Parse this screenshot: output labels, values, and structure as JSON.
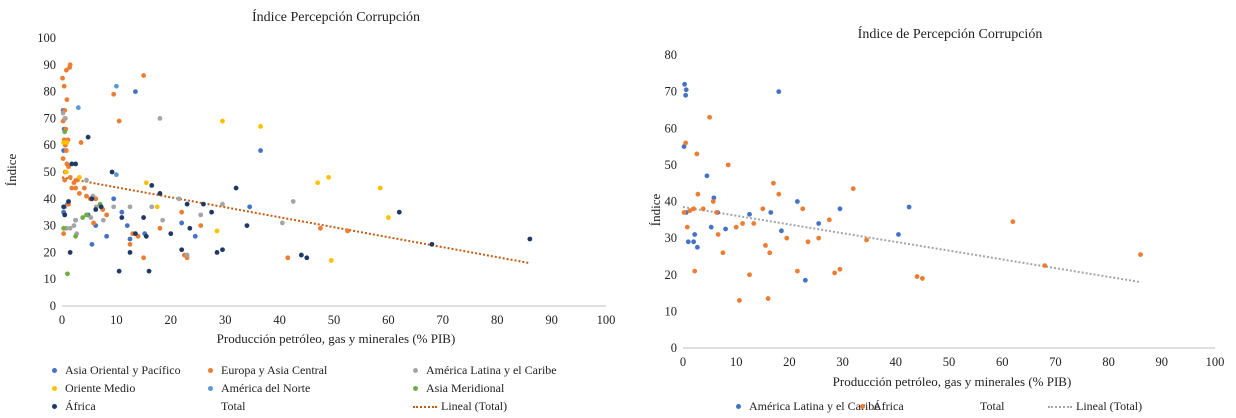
{
  "chart_data": [
    {
      "type": "scatter",
      "title": "Índice Percepción Corrupción",
      "xlabel": "Producción petróleo, gas y minerales (% PIB)",
      "ylabel": "Índice",
      "xlim": [
        0,
        100
      ],
      "ylim": [
        0,
        100
      ],
      "xticks": [
        "0",
        "10",
        "20",
        "30",
        "40",
        "50",
        "60",
        "70",
        "80",
        "90",
        "100"
      ],
      "yticks": [
        "0",
        "10",
        "20",
        "30",
        "40",
        "50",
        "60",
        "70",
        "80",
        "90",
        "100"
      ],
      "grid": false,
      "legend_position": "bottom",
      "series": [
        {
          "name": "Asia Oriental y Pacífico",
          "color": "#4472c4",
          "points": [
            [
              0.2,
              73
            ],
            [
              0.4,
              66
            ],
            [
              0.3,
              58
            ],
            [
              0.3,
              35
            ],
            [
              1.0,
              38
            ],
            [
              2.5,
              32
            ],
            [
              4.8,
              34
            ],
            [
              5.5,
              23
            ],
            [
              6.2,
              30
            ],
            [
              8.2,
              26
            ],
            [
              9.5,
              40
            ],
            [
              11,
              35
            ],
            [
              12,
              30
            ],
            [
              13.5,
              80
            ],
            [
              15.2,
              27
            ],
            [
              22,
              31
            ],
            [
              24.5,
              26
            ],
            [
              34.5,
              37
            ],
            [
              36.5,
              58
            ],
            [
              12.5,
              25
            ]
          ]
        },
        {
          "name": "Europa y Asia Central",
          "color": "#ed7d31",
          "points": [
            [
              0.1,
              85
            ],
            [
              0.4,
              82
            ],
            [
              0.8,
              88
            ],
            [
              0.9,
              77
            ],
            [
              1.4,
              89
            ],
            [
              1.5,
              90
            ],
            [
              0.5,
              73
            ],
            [
              0.6,
              70
            ],
            [
              0.2,
              69
            ],
            [
              0.7,
              66
            ],
            [
              1.1,
              62
            ],
            [
              0.4,
              62
            ],
            [
              0.6,
              60
            ],
            [
              0.8,
              58
            ],
            [
              0.2,
              55
            ],
            [
              0.9,
              53
            ],
            [
              1.2,
              52
            ],
            [
              0.6,
              50
            ],
            [
              1.5,
              48
            ],
            [
              2.2,
              46
            ],
            [
              2.8,
              47
            ],
            [
              1.8,
              44
            ],
            [
              2.5,
              44
            ],
            [
              3.2,
              42
            ],
            [
              4.1,
              44
            ],
            [
              4.5,
              41
            ],
            [
              5.2,
              40
            ],
            [
              6.2,
              40
            ],
            [
              7.5,
              36
            ],
            [
              8.2,
              34
            ],
            [
              3.5,
              61
            ],
            [
              9.5,
              79
            ],
            [
              10.5,
              69
            ],
            [
              15,
              86
            ],
            [
              12.5,
              23
            ],
            [
              13,
              27
            ],
            [
              14,
              26
            ],
            [
              15,
              18
            ],
            [
              18,
              29
            ],
            [
              22,
              35
            ],
            [
              22.5,
              19
            ],
            [
              23,
              18
            ],
            [
              25.5,
              30
            ],
            [
              41.5,
              18
            ],
            [
              47.5,
              29
            ],
            [
              52.5,
              28
            ],
            [
              0.5,
              47
            ],
            [
              1.2,
              38
            ],
            [
              0.8,
              29
            ],
            [
              0.3,
              27
            ],
            [
              5.8,
              31
            ]
          ]
        },
        {
          "name": "América Latina y el Caribe",
          "color": "#a5a5a5",
          "points": [
            [
              0.2,
              72
            ],
            [
              0.5,
              70
            ],
            [
              0.5,
              37
            ],
            [
              0.8,
              29
            ],
            [
              1.5,
              29
            ],
            [
              2.2,
              30
            ],
            [
              2.5,
              32
            ],
            [
              2.7,
              27
            ],
            [
              4.5,
              47
            ],
            [
              5.3,
              33
            ],
            [
              5.7,
              41
            ],
            [
              6.3,
              37
            ],
            [
              7.6,
              32
            ],
            [
              9.5,
              37
            ],
            [
              12.5,
              37
            ],
            [
              16.5,
              37
            ],
            [
              18,
              70
            ],
            [
              18.5,
              32
            ],
            [
              21.5,
              40
            ],
            [
              23,
              19
            ],
            [
              25.5,
              34
            ],
            [
              29.5,
              38
            ],
            [
              40.5,
              31
            ],
            [
              42.5,
              39
            ]
          ]
        },
        {
          "name": "Oriente Medio",
          "color": "#ffc000",
          "points": [
            [
              0.3,
              61
            ],
            [
              0.9,
              61
            ],
            [
              0.8,
              50
            ],
            [
              3.2,
              48
            ],
            [
              15.5,
              46
            ],
            [
              17.5,
              37
            ],
            [
              28.5,
              28
            ],
            [
              29.5,
              69
            ],
            [
              36.5,
              67
            ],
            [
              47,
              46
            ],
            [
              49,
              48
            ],
            [
              49.5,
              17
            ],
            [
              58.5,
              44
            ],
            [
              60,
              33
            ]
          ]
        },
        {
          "name": "América del Norte",
          "color": "#5b9bd5",
          "points": [
            [
              3.0,
              74
            ],
            [
              10,
              82
            ],
            [
              10,
              49
            ]
          ]
        },
        {
          "name": "Asia Meridional",
          "color": "#70ad47",
          "points": [
            [
              0.5,
              65
            ],
            [
              1.0,
              12
            ],
            [
              2.5,
              26
            ],
            [
              3.8,
              33
            ],
            [
              4.5,
              34
            ],
            [
              7.0,
              38
            ],
            [
              0.3,
              29
            ]
          ]
        },
        {
          "name": "África",
          "color": "#1f3864",
          "points": [
            [
              0.3,
              37
            ],
            [
              0.5,
              34
            ],
            [
              1.2,
              39
            ],
            [
              1.5,
              20
            ],
            [
              1.8,
              53
            ],
            [
              2.5,
              53
            ],
            [
              4.8,
              63
            ],
            [
              5.5,
              40
            ],
            [
              6.2,
              36
            ],
            [
              7.2,
              37
            ],
            [
              9.2,
              50
            ],
            [
              10.5,
              13
            ],
            [
              11,
              33
            ],
            [
              12.5,
              20
            ],
            [
              13.5,
              27
            ],
            [
              15,
              33
            ],
            [
              15.5,
              26
            ],
            [
              16,
              13
            ],
            [
              16.5,
              45
            ],
            [
              18,
              42
            ],
            [
              20,
              27
            ],
            [
              22,
              21
            ],
            [
              23,
              38
            ],
            [
              23.5,
              29
            ],
            [
              26,
              38
            ],
            [
              27.5,
              35
            ],
            [
              28.5,
              20
            ],
            [
              29.5,
              21
            ],
            [
              32,
              44
            ],
            [
              34,
              30
            ],
            [
              44,
              19
            ],
            [
              45,
              18
            ],
            [
              62,
              35
            ],
            [
              68,
              23
            ],
            [
              86,
              25
            ]
          ]
        }
      ],
      "trendline": {
        "name": "Lineal (Total)",
        "color": "#c55a11",
        "from": [
          0,
          48
        ],
        "to": [
          86,
          16
        ]
      },
      "legend": [
        {
          "label": "Asia Oriental y Pacífico",
          "color": "#4472c4",
          "kind": "marker"
        },
        {
          "label": "Europa y Asia Central",
          "color": "#ed7d31",
          "kind": "marker"
        },
        {
          "label": "América Latina y el Caribe",
          "color": "#a5a5a5",
          "kind": "marker"
        },
        {
          "label": "Oriente Medio",
          "color": "#ffc000",
          "kind": "marker"
        },
        {
          "label": "América del Norte",
          "color": "#5b9bd5",
          "kind": "marker"
        },
        {
          "label": "Asia Meridional",
          "color": "#70ad47",
          "kind": "marker"
        },
        {
          "label": "África",
          "color": "#1f3864",
          "kind": "marker"
        },
        {
          "label": "Total",
          "color": "",
          "kind": "none"
        },
        {
          "label": "Lineal (Total)",
          "color": "#c55a11",
          "kind": "line"
        }
      ]
    },
    {
      "type": "scatter",
      "title": "Índice de Percepción Corrupción",
      "xlabel": "Producción petróleo, gas y minerales (% PIB)",
      "ylabel": "Índice",
      "xlim": [
        0,
        100
      ],
      "ylim": [
        0,
        80
      ],
      "xticks": [
        "0",
        "10",
        "20",
        "30",
        "40",
        "50",
        "60",
        "70",
        "80",
        "90",
        "100"
      ],
      "yticks": [
        "0",
        "10",
        "20",
        "30",
        "40",
        "50",
        "60",
        "70",
        "80"
      ],
      "grid": false,
      "legend_position": "bottom",
      "series": [
        {
          "name": "América Latina y el Caribe",
          "color": "#4472c4",
          "points": [
            [
              0.3,
              72
            ],
            [
              0.6,
              70.5
            ],
            [
              0.5,
              69
            ],
            [
              0.2,
              55
            ],
            [
              0.6,
              37
            ],
            [
              1.0,
              29
            ],
            [
              2.0,
              29
            ],
            [
              2.2,
              31
            ],
            [
              2.7,
              27.5
            ],
            [
              4.5,
              47
            ],
            [
              5.3,
              33
            ],
            [
              5.8,
              41
            ],
            [
              6.5,
              37
            ],
            [
              8.0,
              32.5
            ],
            [
              12.5,
              36.5
            ],
            [
              16.5,
              37
            ],
            [
              18,
              70
            ],
            [
              18.5,
              32
            ],
            [
              21.5,
              40
            ],
            [
              23,
              18.5
            ],
            [
              25.5,
              34
            ],
            [
              29.5,
              38
            ],
            [
              40.5,
              31
            ],
            [
              42.5,
              38.5
            ]
          ]
        },
        {
          "name": "África",
          "color": "#ed7d31",
          "points": [
            [
              0.2,
              37
            ],
            [
              0.5,
              56
            ],
            [
              1.3,
              37.5
            ],
            [
              0.8,
              33
            ],
            [
              2.0,
              38
            ],
            [
              2.2,
              21
            ],
            [
              2.6,
              53
            ],
            [
              2.8,
              42
            ],
            [
              3.8,
              38
            ],
            [
              5.0,
              63
            ],
            [
              5.7,
              40
            ],
            [
              6.3,
              37
            ],
            [
              6.6,
              31
            ],
            [
              7.5,
              26
            ],
            [
              8.5,
              50
            ],
            [
              10.0,
              33
            ],
            [
              10.6,
              13
            ],
            [
              11.2,
              34
            ],
            [
              12.5,
              20
            ],
            [
              13.3,
              34
            ],
            [
              15.0,
              38
            ],
            [
              15.5,
              28
            ],
            [
              16.0,
              13.5
            ],
            [
              16.3,
              26
            ],
            [
              17.0,
              45
            ],
            [
              18.0,
              42
            ],
            [
              19.5,
              30
            ],
            [
              21.5,
              21
            ],
            [
              22.5,
              38
            ],
            [
              23.5,
              29
            ],
            [
              25.5,
              30
            ],
            [
              27.5,
              35
            ],
            [
              28.5,
              20.5
            ],
            [
              29.5,
              21.5
            ],
            [
              32.0,
              43.5
            ],
            [
              34.5,
              29.5
            ],
            [
              44.0,
              19.5
            ],
            [
              45.0,
              19
            ],
            [
              62.0,
              34.5
            ],
            [
              68.0,
              22.5
            ],
            [
              86.0,
              25.5
            ]
          ]
        }
      ],
      "trendline": {
        "name": "Lineal (Total)",
        "color": "#a5a5a5",
        "from": [
          0,
          38.5
        ],
        "to": [
          86,
          18
        ]
      },
      "legend": [
        {
          "label": "América Latina y el Caribe",
          "color": "#4472c4",
          "kind": "marker"
        },
        {
          "label": "África",
          "color": "#ed7d31",
          "kind": "marker"
        },
        {
          "label": "Total",
          "color": "",
          "kind": "none"
        },
        {
          "label": "Lineal (Total)",
          "color": "#a5a5a5",
          "kind": "line"
        }
      ]
    }
  ]
}
